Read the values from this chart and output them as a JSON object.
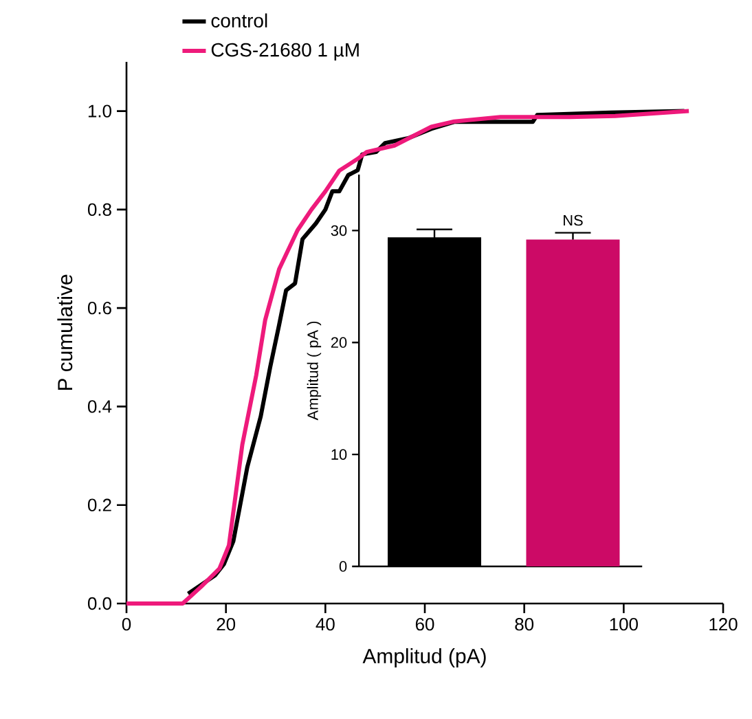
{
  "chart_data": [
    {
      "type": "line",
      "xlabel": "Amplitud (pA)",
      "ylabel": "P cumulative",
      "xlim": [
        0,
        120
      ],
      "ylim": [
        0,
        1.1
      ],
      "xticks": [
        0,
        20,
        40,
        60,
        80,
        100,
        120
      ],
      "yticks": [
        {
          "value": 0,
          "label": "0.0"
        },
        {
          "value": 0.2,
          "label": "0.2"
        },
        {
          "value": 0.4,
          "label": "0.4"
        },
        {
          "value": 0.6,
          "label": "0.6"
        },
        {
          "value": 0.8,
          "label": "0.8"
        },
        {
          "value": 1.0,
          "label": "1.0"
        }
      ],
      "legend": "top left",
      "series": [
        {
          "name": "control",
          "color": "#000000",
          "x": [
            12.4,
            17.8,
            19.6,
            21.5,
            24.3,
            27,
            28.9,
            30.7,
            32.1,
            33.9,
            35.4,
            38.1,
            40,
            41.4,
            42.8,
            44.6,
            46.5,
            47.4,
            50.2,
            52,
            56.7,
            61.3,
            65.9,
            81.7,
            82.6,
            97.4,
            112.2
          ],
          "values": [
            0.02,
            0.057,
            0.08,
            0.127,
            0.277,
            0.38,
            0.48,
            0.566,
            0.636,
            0.65,
            0.74,
            0.772,
            0.8,
            0.837,
            0.837,
            0.87,
            0.88,
            0.912,
            0.917,
            0.935,
            0.945,
            0.964,
            0.978,
            0.978,
            0.992,
            0.997,
            1.0
          ]
        },
        {
          "name": "CGS-21680 1 µM",
          "color": "#ee1a7b",
          "x": [
            0,
            11.3,
            15,
            18.7,
            20.6,
            23.3,
            26.1,
            27.9,
            30.7,
            34.4,
            37.2,
            40,
            42.8,
            46.5,
            48.3,
            53.9,
            61.3,
            65.9,
            75.2,
            89.1,
            98.3,
            113.1
          ],
          "values": [
            0,
            0,
            0.034,
            0.071,
            0.118,
            0.323,
            0.464,
            0.576,
            0.679,
            0.758,
            0.8,
            0.837,
            0.879,
            0.903,
            0.917,
            0.93,
            0.968,
            0.979,
            0.988,
            0.988,
            0.99,
            1.0
          ]
        }
      ]
    },
    {
      "type": "bar",
      "ylabel": "Amplitud ( pA )",
      "categories": [
        null,
        null
      ],
      "values": [
        29.4,
        29.2
      ],
      "errors": [
        0.7,
        0.6
      ],
      "colors": [
        "#000000",
        "#cc0a66"
      ],
      "ylim": [
        0,
        35
      ],
      "yticks": [
        0,
        10,
        20,
        30
      ],
      "annotations": [
        "NS"
      ]
    }
  ]
}
